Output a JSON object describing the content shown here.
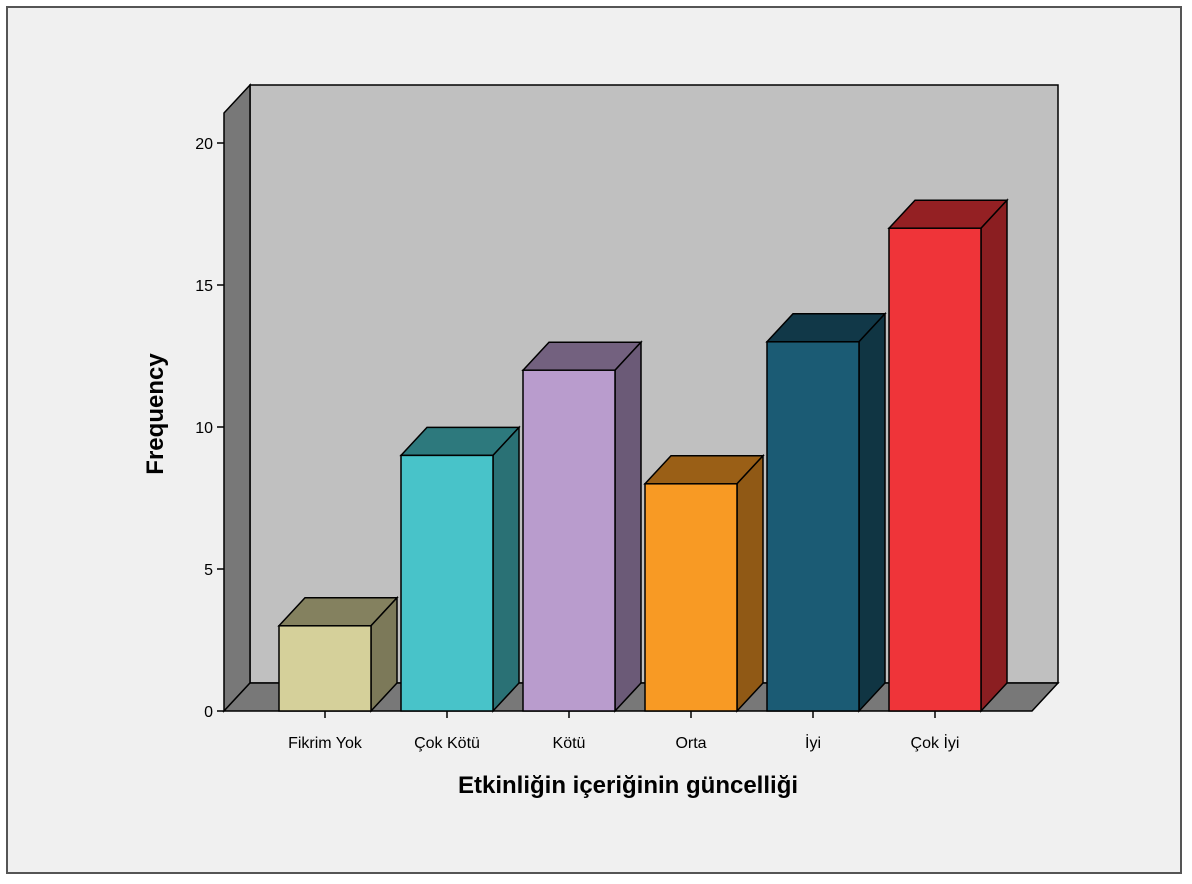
{
  "chart_data": {
    "type": "bar",
    "style": "3d",
    "categories": [
      "Fikrim Yok",
      "Çok Kötü",
      "Kötü",
      "Orta",
      "İyi",
      "Çok İyi"
    ],
    "values": [
      3,
      9,
      12,
      8,
      13,
      17
    ],
    "colors": [
      "#d5d09a",
      "#48c3c9",
      "#b99ccd",
      "#f89a24",
      "#1b5b74",
      "#ef3439"
    ],
    "xlabel": "Etkinliğin içeriğinin güncelliği",
    "ylabel": "Frequency",
    "yticks": [
      0,
      5,
      10,
      15,
      20
    ],
    "ylim": [
      0,
      20
    ],
    "grid": false,
    "legend": "none",
    "wall_color": "#c0c0c0",
    "floor_color": "#787878"
  }
}
